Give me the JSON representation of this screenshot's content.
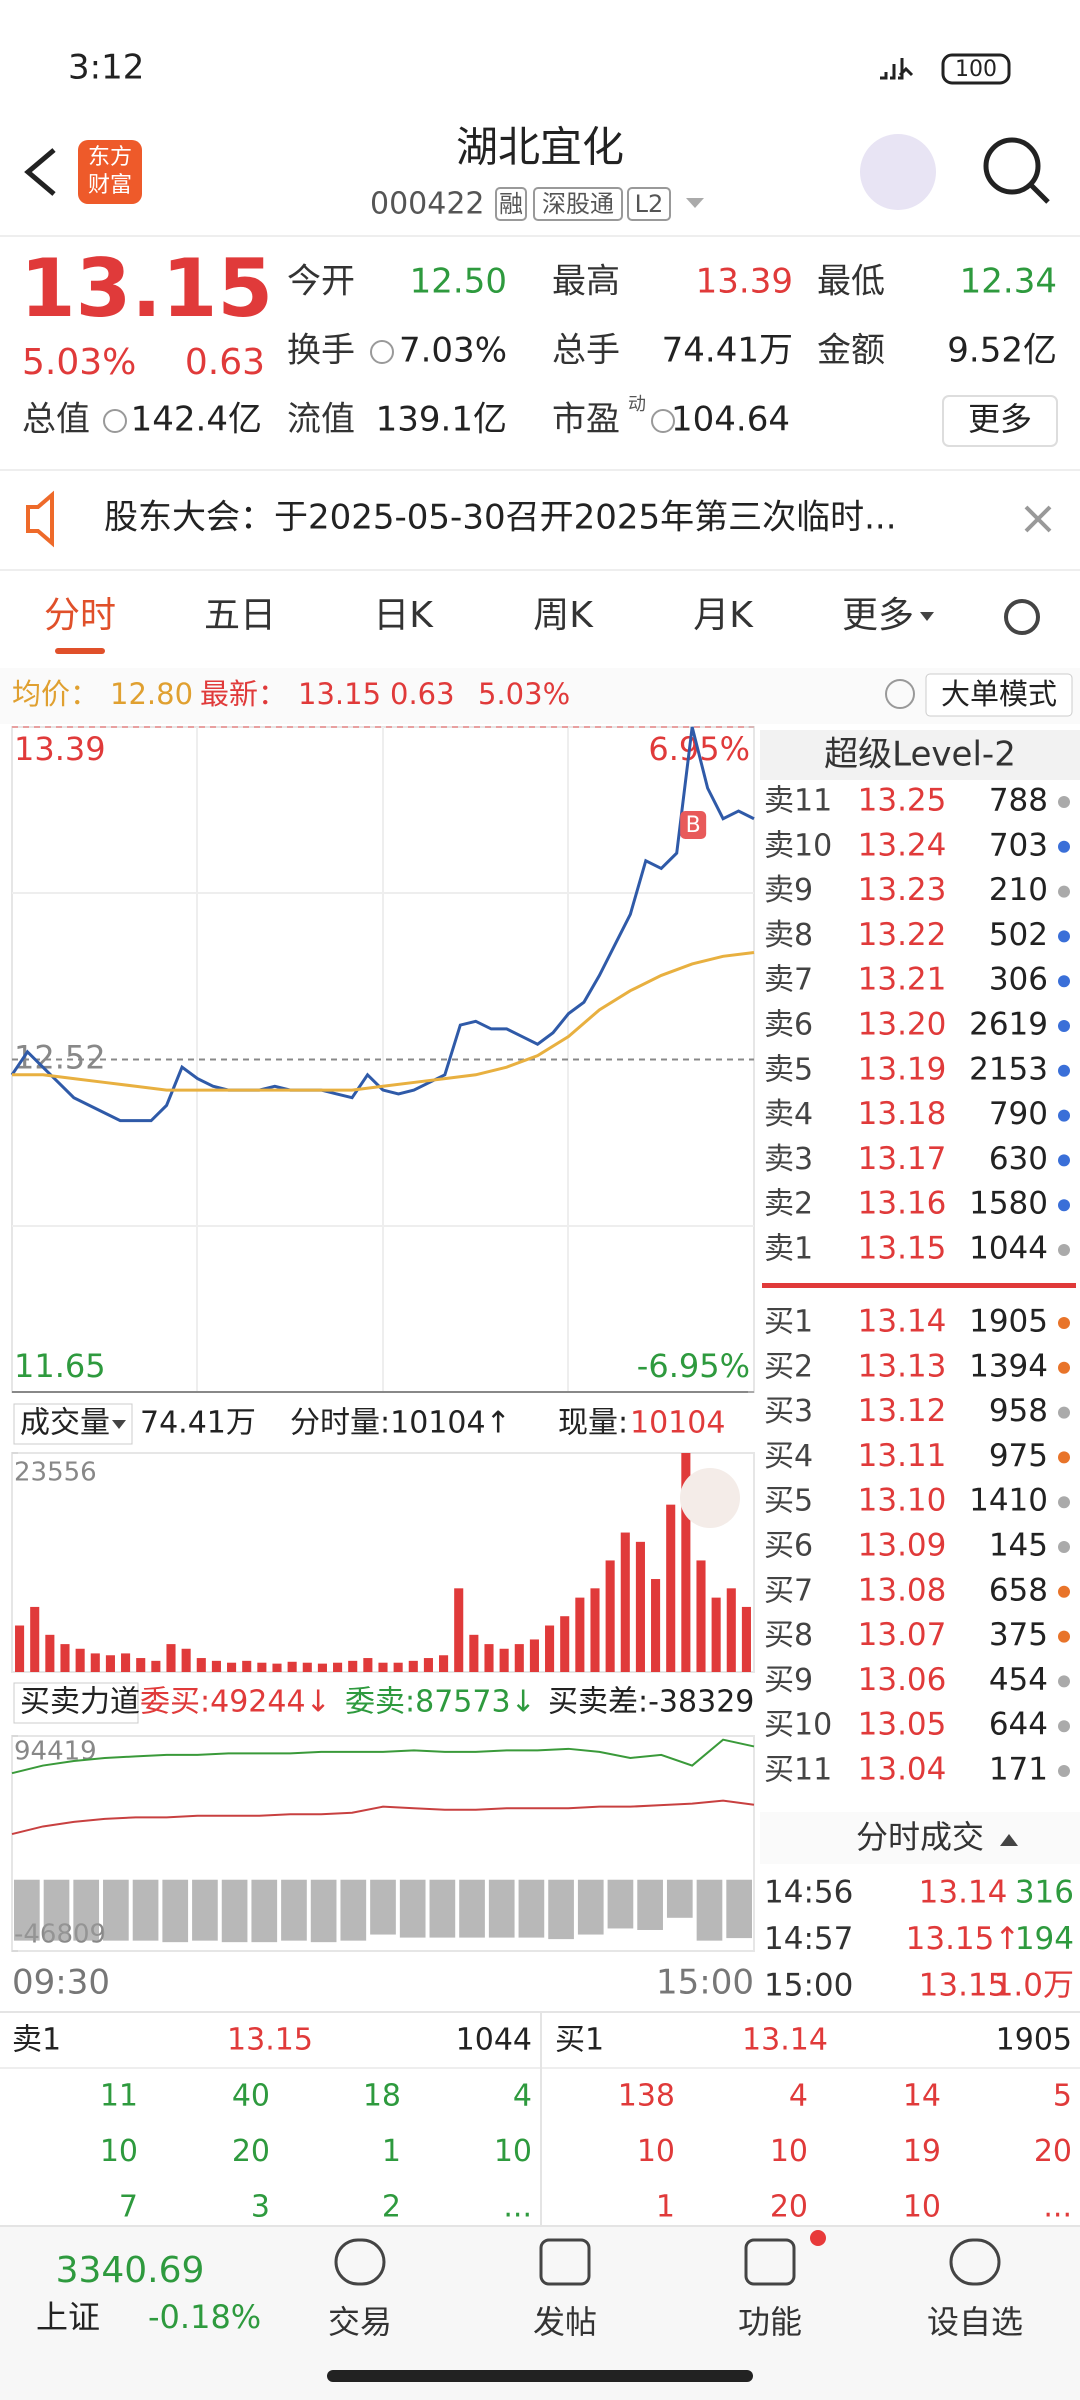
{
  "status": {
    "time": "3:12",
    "battery": "100"
  },
  "header": {
    "title": "湖北宜化",
    "code": "000422",
    "tags": [
      "融",
      "深股通",
      "L2"
    ],
    "logo": [
      "东方",
      "财富"
    ]
  },
  "quote": {
    "price": "13.15",
    "change_pct": "5.03%",
    "change": "0.63",
    "stats": [
      {
        "label": "今开",
        "value": "12.50"
      },
      {
        "label": "最高",
        "value": "13.39"
      },
      {
        "label": "最低",
        "value": "12.34"
      },
      {
        "label": "换手",
        "value": "7.03%"
      },
      {
        "label": "总手",
        "value": "74.41万"
      },
      {
        "label": "金额",
        "value": "9.52亿"
      },
      {
        "label": "总值",
        "value": "142.4亿"
      },
      {
        "label": "流值",
        "value": "139.1亿"
      },
      {
        "label": "市盈",
        "value": "104.64"
      }
    ],
    "pe_sup": "动",
    "more": "更多"
  },
  "notice": "股东大会：于2025-05-30召开2025年第三次临时...",
  "tabs": [
    "分时",
    "五日",
    "日K",
    "周K",
    "月K",
    "更多"
  ],
  "info": {
    "avg_label": "均价：",
    "avg": "12.80",
    "last_label": "最新：",
    "last": "13.15",
    "change": "0.63",
    "change_pct": "5.03%",
    "mode": "大单模式"
  },
  "chart_data": [
    {
      "type": "line",
      "ylim": [
        11.65,
        13.39
      ],
      "yticks": [
        13.39,
        12.52,
        11.65
      ],
      "y2lim": [
        -6.95,
        6.95
      ],
      "y2ticks": [
        {
          "value": 6.95,
          "label": "6.95%"
        },
        {
          "value": -6.95,
          "label": "-6.95%"
        }
      ],
      "x_labels": [
        "09:30",
        "15:00"
      ],
      "annotation": "B",
      "series": [
        {
          "color": "#2f5aa8",
          "values": [
            12.48,
            12.54,
            12.5,
            12.46,
            12.42,
            12.4,
            12.38,
            12.36,
            12.36,
            12.36,
            12.4,
            12.5,
            12.47,
            12.45,
            12.44,
            12.44,
            12.44,
            12.45,
            12.44,
            12.44,
            12.44,
            12.43,
            12.42,
            12.48,
            12.44,
            12.43,
            12.44,
            12.46,
            12.48,
            12.61,
            12.62,
            12.6,
            12.6,
            12.58,
            12.56,
            12.59,
            12.64,
            12.67,
            12.74,
            12.82,
            12.9,
            13.04,
            13.02,
            13.06,
            13.39,
            13.23,
            13.15,
            13.17,
            13.15
          ]
        },
        {
          "color": "#e8b040",
          "values": [
            12.48,
            12.48,
            12.47,
            12.46,
            12.45,
            12.44,
            12.44,
            12.44,
            12.44,
            12.44,
            12.44,
            12.44,
            12.45,
            12.46,
            12.47,
            12.48,
            12.5,
            12.53,
            12.58,
            12.65,
            12.7,
            12.74,
            12.77,
            12.79,
            12.8
          ]
        }
      ]
    },
    {
      "type": "bar",
      "title": "成交量",
      "total": "74.41万",
      "period": "分时量:10104↑",
      "current_label": "现量:",
      "current": "10104",
      "ylim": [
        0,
        23556
      ],
      "yticks": [
        23556
      ],
      "color": "#e03a3a",
      "values": [
        5000,
        7000,
        4000,
        3000,
        2500,
        2000,
        1800,
        2000,
        1500,
        1200,
        3000,
        2500,
        1500,
        1200,
        1000,
        1200,
        1000,
        900,
        1100,
        1000,
        900,
        1000,
        1200,
        1500,
        1000,
        1000,
        1200,
        1500,
        1800,
        9000,
        4000,
        3000,
        2500,
        3000,
        3500,
        5000,
        6000,
        8000,
        9000,
        12000,
        15000,
        14000,
        10000,
        18000,
        23556,
        12000,
        8000,
        9000,
        7000
      ]
    },
    {
      "type": "line",
      "title": "买卖力道",
      "legend": [
        "委买:49244↓",
        "委卖:87573↓",
        "买卖差:-38329↑"
      ],
      "ylim": [
        -46809,
        94419
      ],
      "yticks": [
        94419,
        -46809
      ],
      "series": [
        {
          "color": "#3a9a3a",
          "values": [
            70000,
            75000,
            78000,
            80000,
            81000,
            82000,
            82000,
            83000,
            83000,
            83000,
            84000,
            84000,
            84000,
            85000,
            84000,
            84000,
            85000,
            85000,
            86000,
            84000,
            80000,
            82000,
            75000,
            92000,
            87573
          ]
        },
        {
          "color": "#c84040",
          "values": [
            30000,
            35000,
            38000,
            40000,
            41000,
            41000,
            42000,
            42000,
            42000,
            43000,
            43000,
            44000,
            48000,
            47000,
            46000,
            46000,
            47000,
            47000,
            47000,
            48000,
            48000,
            49000,
            50000,
            52000,
            49244
          ]
        }
      ],
      "bars": {
        "color": "#9a9a9a",
        "values": [
          -40000,
          -40000,
          -40000,
          -40000,
          -40000,
          -41000,
          -40000,
          -41000,
          -41000,
          -40000,
          -41000,
          -40000,
          -36000,
          -38000,
          -38000,
          -38000,
          -38000,
          -38000,
          -39000,
          -36000,
          -32000,
          -33000,
          -25000,
          -40000,
          -38329
        ]
      }
    }
  ],
  "level2": {
    "title": "超级Level-2",
    "asks": [
      {
        "label": "卖11",
        "price": "13.25",
        "volume": "788",
        "dot": "#aaa"
      },
      {
        "label": "卖10",
        "price": "13.24",
        "volume": "703",
        "dot": "#3a6fd8"
      },
      {
        "label": "卖9",
        "price": "13.23",
        "volume": "210",
        "dot": "#aaa"
      },
      {
        "label": "卖8",
        "price": "13.22",
        "volume": "502",
        "dot": "#3a6fd8"
      },
      {
        "label": "卖7",
        "price": "13.21",
        "volume": "306",
        "dot": "#3a6fd8"
      },
      {
        "label": "卖6",
        "price": "13.20",
        "volume": "2619",
        "dot": "#3a6fd8"
      },
      {
        "label": "卖5",
        "price": "13.19",
        "volume": "2153",
        "dot": "#3a6fd8"
      },
      {
        "label": "卖4",
        "price": "13.18",
        "volume": "790",
        "dot": "#3a6fd8"
      },
      {
        "label": "卖3",
        "price": "13.17",
        "volume": "630",
        "dot": "#3a6fd8"
      },
      {
        "label": "卖2",
        "price": "13.16",
        "volume": "1580",
        "dot": "#3a6fd8"
      },
      {
        "label": "卖1",
        "price": "13.15",
        "volume": "1044",
        "dot": "#aaa"
      }
    ],
    "bids": [
      {
        "label": "买1",
        "price": "13.14",
        "volume": "1905",
        "dot": "#e8742a"
      },
      {
        "label": "买2",
        "price": "13.13",
        "volume": "1394",
        "dot": "#e8742a"
      },
      {
        "label": "买3",
        "price": "13.12",
        "volume": "958",
        "dot": "#aaa"
      },
      {
        "label": "买4",
        "price": "13.11",
        "volume": "975",
        "dot": "#e8742a"
      },
      {
        "label": "买5",
        "price": "13.10",
        "volume": "1410",
        "dot": "#aaa"
      },
      {
        "label": "买6",
        "price": "13.09",
        "volume": "145",
        "dot": "#aaa"
      },
      {
        "label": "买7",
        "price": "13.08",
        "volume": "658",
        "dot": "#e8742a"
      },
      {
        "label": "买8",
        "price": "13.07",
        "volume": "375",
        "dot": "#e8742a"
      },
      {
        "label": "买9",
        "price": "13.06",
        "volume": "454",
        "dot": "#aaa"
      },
      {
        "label": "买10",
        "price": "13.05",
        "volume": "644",
        "dot": "#aaa"
      },
      {
        "label": "买11",
        "price": "13.04",
        "volume": "171",
        "dot": "#aaa"
      }
    ],
    "trades_title": "分时成交",
    "trades": [
      {
        "time": "14:56",
        "price": "13.14",
        "volume": "316",
        "color": "#2e9a3e"
      },
      {
        "time": "14:57",
        "price": "13.15↑",
        "volume": "194",
        "color": "#2e9a3e"
      },
      {
        "time": "15:00",
        "price": "13.15",
        "volume": "1.0万",
        "color": "#e03a3a"
      }
    ]
  },
  "queue": {
    "ask": {
      "label": "卖1",
      "price": "13.15",
      "volume": "1044",
      "rows": [
        [
          "11",
          "40",
          "18",
          "4"
        ],
        [
          "10",
          "20",
          "1",
          "10"
        ],
        [
          "7",
          "3",
          "2",
          "..."
        ]
      ]
    },
    "bid": {
      "label": "买1",
      "price": "13.14",
      "volume": "1905",
      "rows": [
        [
          "138",
          "4",
          "14",
          "5"
        ],
        [
          "10",
          "10",
          "19",
          "20"
        ],
        [
          "1",
          "20",
          "10",
          "..."
        ]
      ]
    }
  },
  "nav": {
    "index_value": "3340.69",
    "index_name": "上证",
    "index_change": "-0.18%",
    "items": [
      "交易",
      "发帖",
      "功能",
      "设自选"
    ]
  }
}
